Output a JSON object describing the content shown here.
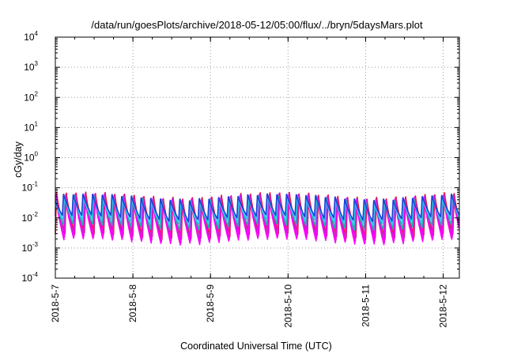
{
  "chart_data": {
    "type": "line",
    "title": "/data/run/goesPlots/archive/2018-05-12/05:00/flux/../bryn/5daysMars.plot",
    "xlabel": "Coordinated Universal Time (UTC)",
    "ylabel": "cGy/day",
    "yscale": "log",
    "ylim": [
      0.0001,
      10000
    ],
    "xlim": [
      "2018-05-07T00:00",
      "2018-05-12T05:00"
    ],
    "x_ticks": [
      "2018-5-7",
      "2018-5-8",
      "2018-5-9",
      "2018-5-10",
      "2018-5-11",
      "2018-5-12"
    ],
    "y_ticks": [
      {
        "base": "10",
        "exp": "-4"
      },
      {
        "base": "10",
        "exp": "-3"
      },
      {
        "base": "10",
        "exp": "-2"
      },
      {
        "base": "10",
        "exp": "-1"
      },
      {
        "base": "10",
        "exp": "0"
      },
      {
        "base": "10",
        "exp": "1"
      },
      {
        "base": "10",
        "exp": "2"
      },
      {
        "base": "10",
        "exp": "3"
      },
      {
        "base": "10",
        "exp": "4"
      }
    ],
    "grid": true,
    "legend": "none",
    "pulse_period_hours": 3,
    "series": [
      {
        "color": "#e8132e",
        "peak": 0.08,
        "base": 0.003
      },
      {
        "color": "#c41fd0",
        "peak": 0.074,
        "base": 0.0024
      },
      {
        "color": "#ff00ff",
        "peak": 0.068,
        "base": 0.002
      },
      {
        "color": "#1ab3b3",
        "peak": 0.06,
        "base": 0.006
      },
      {
        "color": "#33ccff",
        "peak": 0.055,
        "base": 0.009
      },
      {
        "color": "#1f3fd6",
        "peak": 0.065,
        "base": 0.012
      }
    ]
  }
}
